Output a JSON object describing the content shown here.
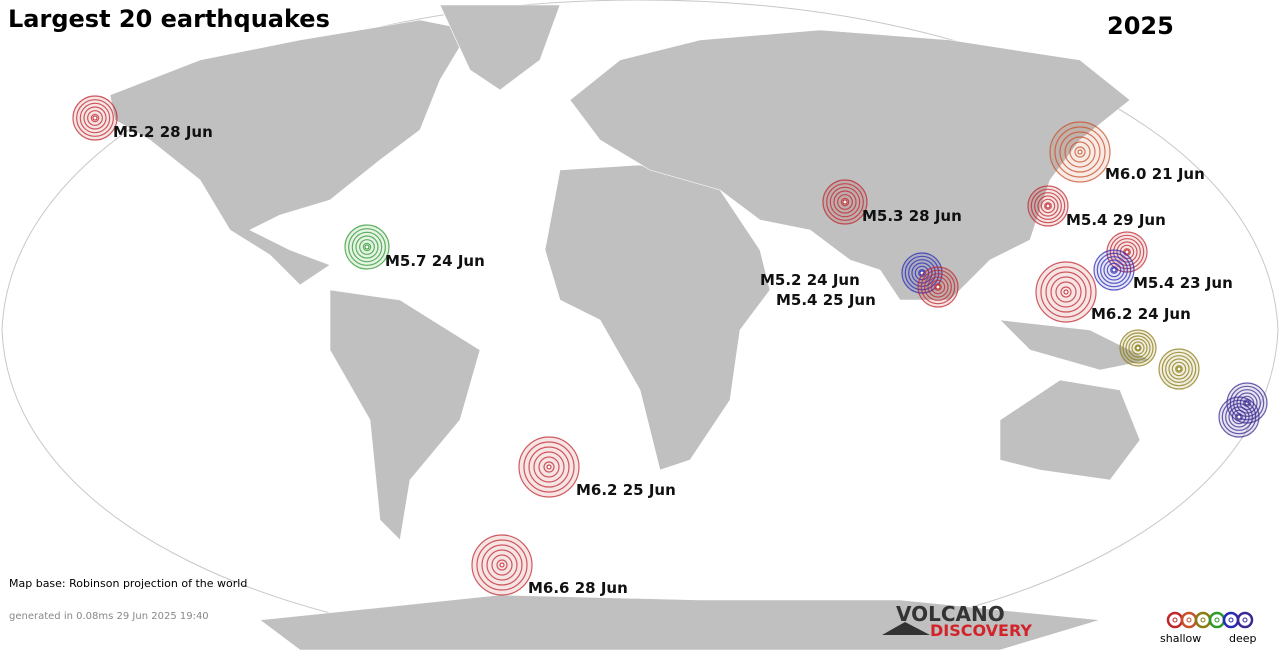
{
  "header": {
    "title": "Largest 20 earthquakes",
    "year": "2025"
  },
  "quakes": [
    {
      "label": "M5.2 28 Jun"
    },
    {
      "label": "M6.0 21 Jun"
    },
    {
      "label": "M5.3 28 Jun"
    },
    {
      "label": "M5.4 29 Jun"
    },
    {
      "label": "M5.7 24 Jun"
    },
    {
      "label": "M5.2 24 Jun"
    },
    {
      "label": "M5.4 25 Jun"
    },
    {
      "label": "M5.4 23 Jun"
    },
    {
      "label": "M6.2 24 Jun"
    },
    {
      "label": "M6.2 25 Jun"
    },
    {
      "label": "M6.6 28 Jun"
    }
  ],
  "footer": {
    "map_base": "Map base: Robinson projection of the world",
    "generated": "generated in 0.08ms 29 Jun 2025 19:40"
  },
  "logo": {
    "line1": "VOLCANO",
    "line2": "DISCOVERY"
  },
  "legend": {
    "shallow": "shallow",
    "deep": "deep"
  }
}
